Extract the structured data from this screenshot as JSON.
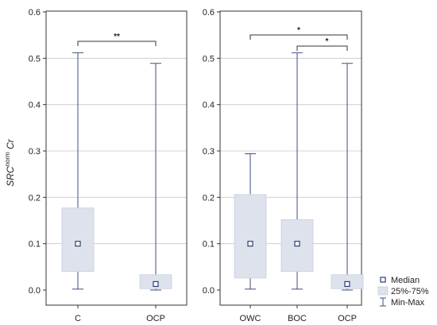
{
  "chart_data": [
    {
      "type": "box",
      "ylabel_main": "SRC",
      "ylabel_sup": "norm",
      "ylabel_tail": " Cr",
      "ylim": [
        0,
        0.6
      ],
      "yticks": [
        "0.0",
        "0.1",
        "0.2",
        "0.3",
        "0.4",
        "0.5",
        "0.6"
      ],
      "grid": true,
      "categories": [
        "C",
        "OCP"
      ],
      "boxes": [
        {
          "category": "C",
          "min": 0.002,
          "q1": 0.04,
          "median": 0.1,
          "q3": 0.177,
          "max": 0.512
        },
        {
          "category": "OCP",
          "min": 0.0,
          "q1": 0.003,
          "median": 0.013,
          "q3": 0.033,
          "max": 0.489
        }
      ],
      "significance": [
        {
          "from": "C",
          "to": "OCP",
          "label": "**"
        }
      ]
    },
    {
      "type": "box",
      "ylim": [
        0,
        0.6
      ],
      "yticks": [
        "0.0",
        "0.1",
        "0.2",
        "0.3",
        "0.4",
        "0.5",
        "0.6"
      ],
      "grid": true,
      "categories": [
        "OWC",
        "BOC",
        "OCP"
      ],
      "boxes": [
        {
          "category": "OWC",
          "min": 0.002,
          "q1": 0.026,
          "median": 0.1,
          "q3": 0.206,
          "max": 0.294
        },
        {
          "category": "BOC",
          "min": 0.002,
          "q1": 0.04,
          "median": 0.1,
          "q3": 0.152,
          "max": 0.512
        },
        {
          "category": "OCP",
          "min": 0.0,
          "q1": 0.003,
          "median": 0.013,
          "q3": 0.033,
          "max": 0.489
        }
      ],
      "significance": [
        {
          "from": "OWC",
          "to": "OCP",
          "label": "*"
        },
        {
          "from": "BOC",
          "to": "OCP",
          "label": "*"
        }
      ]
    }
  ],
  "legend": {
    "placement": "bottom-right",
    "items": [
      {
        "label": "Median",
        "kind": "median"
      },
      {
        "label": "25%-75%",
        "kind": "box"
      },
      {
        "label": "Min-Max",
        "kind": "whisker"
      }
    ]
  },
  "colors": {
    "box_fill": "#dde2ec",
    "box_stroke": "#c9cfdc",
    "whisker": "#3f4f7f",
    "median_marker": "#2d3f75",
    "grid": "#c8c8c8",
    "frame": "#333333",
    "bracket": "#333333"
  }
}
